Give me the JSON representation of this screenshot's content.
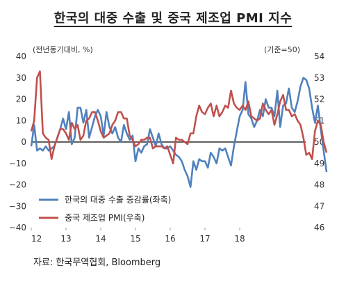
{
  "title": "한국의 대중 수출 및 중국 제조업 PMI 지수",
  "source": "자료: 한국무역협회, Bloomberg",
  "colors": {
    "export_line": "#4f81bd",
    "pmi_line": "#c0504d",
    "zero_line": "#000000",
    "axis": "#999999"
  },
  "chart_data": {
    "type": "line",
    "left_axis_unit": "(전년동기대비, %)",
    "right_axis_unit": "(기준=50)",
    "left_ticks": [
      "40",
      "30",
      "20",
      "10",
      "0",
      "−10",
      "−20",
      "−30",
      "−40"
    ],
    "right_ticks": [
      "54",
      "53",
      "52",
      "51",
      "50",
      "49",
      "48",
      "47",
      "46"
    ],
    "x_ticks": [
      "12",
      "13",
      "14",
      "15",
      "16",
      "17",
      "18"
    ],
    "ylim_left": [
      -40,
      40
    ],
    "ylim_right": [
      46,
      54
    ],
    "x_start": "2012-01",
    "zero_line": true,
    "grid": false,
    "legend_position": "bottom-left",
    "series": [
      {
        "name": "한국의 대중 수출 증감률(좌축)",
        "axis": "left",
        "values": [
          -2,
          8,
          -4,
          -3,
          -4,
          -2,
          -4,
          -3,
          -2,
          2,
          6,
          11,
          6,
          14,
          -1,
          2,
          16,
          16,
          9,
          15,
          2,
          7,
          12,
          15,
          12,
          3,
          14,
          7,
          4,
          7,
          2,
          0,
          8,
          4,
          1,
          3,
          -9,
          -3,
          -5,
          -2,
          -1,
          6,
          2,
          -2,
          4,
          -1,
          -3,
          -3,
          -2,
          -4,
          -6,
          -7,
          -9,
          -13,
          -16,
          -21,
          -9,
          -13,
          -8,
          -9,
          -9,
          -12,
          -5,
          -7,
          -10,
          -3,
          -4,
          -3,
          -7,
          -11,
          -2,
          5,
          12,
          15,
          28,
          13,
          11,
          7,
          10,
          15,
          12,
          20,
          16,
          16,
          12,
          24,
          7,
          17,
          18,
          25,
          16,
          14,
          19,
          26,
          30,
          29,
          25,
          16,
          9,
          17,
          6,
          -4,
          -14
        ]
      },
      {
        "name": "중국 제조업 PMI(우축)",
        "axis": "right",
        "values": [
          50.5,
          51.0,
          53.0,
          53.3,
          50.4,
          50.2,
          50.1,
          49.2,
          49.8,
          50.2,
          50.6,
          50.6,
          50.4,
          50.1,
          50.9,
          50.6,
          50.8,
          50.1,
          50.3,
          51.0,
          51.1,
          51.4,
          51.4,
          51.0,
          50.5,
          50.2,
          50.3,
          50.4,
          50.8,
          51.0,
          51.4,
          51.4,
          51.1,
          51.1,
          50.3,
          50.1,
          49.8,
          49.9,
          50.1,
          50.1,
          50.2,
          50.2,
          49.7,
          49.8,
          49.8,
          49.8,
          49.7,
          49.8,
          49.4,
          49.0,
          50.2,
          50.1,
          50.1,
          50.0,
          49.9,
          50.4,
          50.4,
          51.2,
          51.7,
          51.4,
          51.3,
          51.6,
          51.8,
          51.2,
          51.7,
          51.2,
          51.4,
          51.7,
          51.6,
          52.4,
          51.8,
          51.6,
          51.5,
          51.7,
          51.5,
          51.9,
          51.2,
          51.1,
          51.0,
          51.1,
          51.8,
          51.5,
          51.3,
          51.5,
          50.8,
          51.3,
          51.9,
          52.2,
          51.5,
          51.5,
          51.2,
          51.3,
          51.0,
          50.8,
          50.2,
          49.4,
          49.5,
          49.2,
          50.5,
          51.0,
          50.8,
          50.0,
          49.5
        ]
      }
    ]
  }
}
